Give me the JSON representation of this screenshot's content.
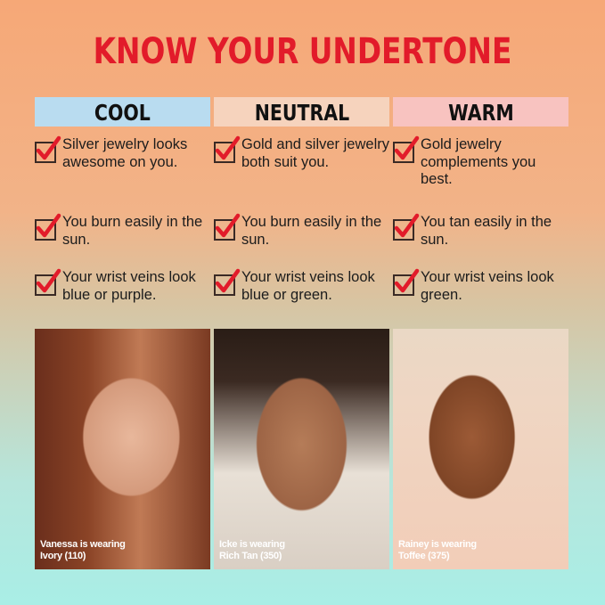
{
  "title": "KNOW YOUR UNDERTONE",
  "columns": [
    {
      "heading": "COOL",
      "color": "#b9dcf0",
      "items": [
        "Silver jewelry looks awesome on you.",
        "You burn easily in the sun.",
        "Your wrist veins look blue or purple."
      ],
      "caption_line1": "Vanessa is wearing",
      "caption_line2": "Ivory (110)"
    },
    {
      "heading": "NEUTRAL",
      "color": "#f6d3bd",
      "items": [
        "Gold and silver jewelry both suit you.",
        "You burn easily in the sun.",
        "Your wrist veins look blue or green."
      ],
      "caption_line1": "Icke is wearing",
      "caption_line2": "Rich Tan (350)"
    },
    {
      "heading": "WARM",
      "color": "#f8c3c0",
      "items": [
        "Gold jewelry complements you best.",
        "You tan easily in the sun.",
        "Your wrist veins look green."
      ],
      "caption_line1": "Rainey is wearing",
      "caption_line2": "Toffee (375)"
    }
  ],
  "colors": {
    "title": "#e21b2a",
    "check": "#e21b2a"
  },
  "icons": {
    "check": "checkbox-checked-icon"
  }
}
